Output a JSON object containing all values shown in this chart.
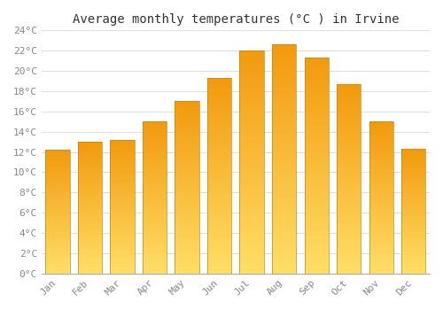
{
  "title": "Average monthly temperatures (°C ) in Irvine",
  "months": [
    "Jan",
    "Feb",
    "Mar",
    "Apr",
    "May",
    "Jun",
    "Jul",
    "Aug",
    "Sep",
    "Oct",
    "Nov",
    "Dec"
  ],
  "values": [
    12.2,
    13.0,
    13.2,
    15.0,
    17.0,
    19.3,
    22.0,
    22.6,
    21.3,
    18.7,
    15.0,
    12.3
  ],
  "bar_color_main": "#FFA500",
  "bar_color_light": "#FFD966",
  "bar_color_edge": "#C8860A",
  "background_color": "#FFFFFF",
  "grid_color": "#DDDDDD",
  "ylim": [
    0,
    24
  ],
  "ytick_step": 2,
  "title_fontsize": 10,
  "tick_fontsize": 8,
  "bar_width": 0.75
}
